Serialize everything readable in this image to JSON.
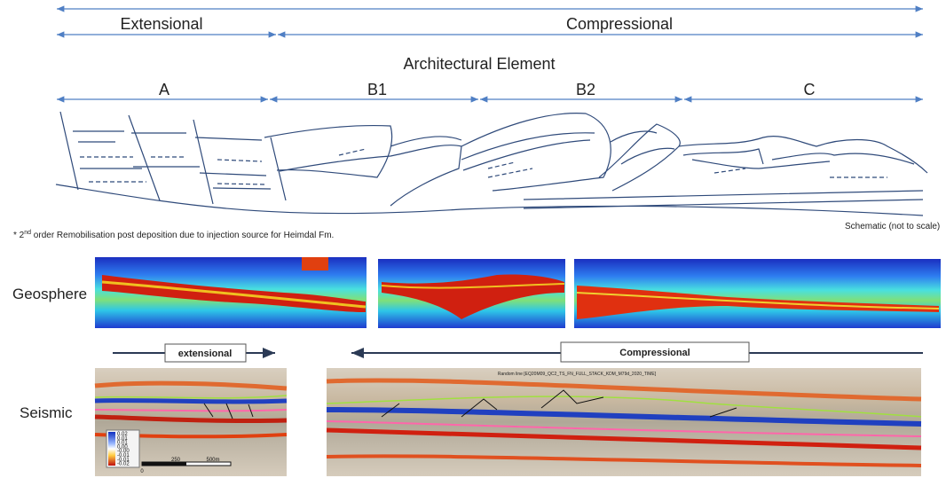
{
  "header": {
    "extensional": "Extensional",
    "compressional": "Compressional"
  },
  "architectural_element": {
    "title": "Architectural Element",
    "segments": [
      "A",
      "B1",
      "B2",
      "C"
    ]
  },
  "schematic_note": "Schematic (not to scale)",
  "footnote": {
    "prefix": "* 2",
    "superscript": "nd",
    "text": " order Remobilisation post deposition due to injection source for Heimdal Fm."
  },
  "geosphere": {
    "label": "Geosphere"
  },
  "seismic": {
    "label": "Seismic",
    "random_line_title": "Random line [EQ20M09_QC2_TS_FN_FULL_STACK_KDM_M79d_2020_TIME]",
    "colorbar_labels": [
      "0.02",
      "0.01",
      "0.01",
      "0.00",
      "-0.00",
      "-0.01",
      "-0.01",
      "-0.02"
    ],
    "scale_labels": [
      "0",
      "250",
      "500m"
    ]
  },
  "arrows": {
    "extensional": "extensional",
    "compressional": "Compressional"
  }
}
